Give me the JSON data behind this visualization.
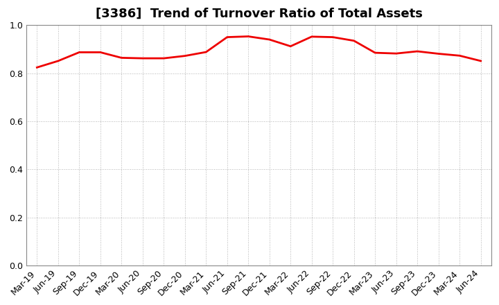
{
  "title": "[3386]  Trend of Turnover Ratio of Total Assets",
  "x_labels": [
    "Mar-19",
    "Jun-19",
    "Sep-19",
    "Dec-19",
    "Mar-20",
    "Jun-20",
    "Sep-20",
    "Dec-20",
    "Mar-21",
    "Jun-21",
    "Sep-21",
    "Dec-21",
    "Mar-22",
    "Jun-22",
    "Sep-22",
    "Dec-22",
    "Mar-23",
    "Jun-23",
    "Sep-23",
    "Dec-23",
    "Mar-24",
    "Jun-24"
  ],
  "values": [
    0.824,
    0.851,
    0.887,
    0.887,
    0.864,
    0.862,
    0.862,
    0.872,
    0.888,
    0.95,
    0.953,
    0.94,
    0.912,
    0.952,
    0.95,
    0.935,
    0.885,
    0.882,
    0.891,
    0.881,
    0.873,
    0.851
  ],
  "line_color": "#ee0000",
  "line_width": 2.0,
  "ylim": [
    0.0,
    1.0
  ],
  "yticks": [
    0.0,
    0.2,
    0.4,
    0.6,
    0.8,
    1.0
  ],
  "background_color": "#ffffff",
  "grid_color": "#aaaaaa",
  "title_fontsize": 13,
  "tick_fontsize": 9
}
